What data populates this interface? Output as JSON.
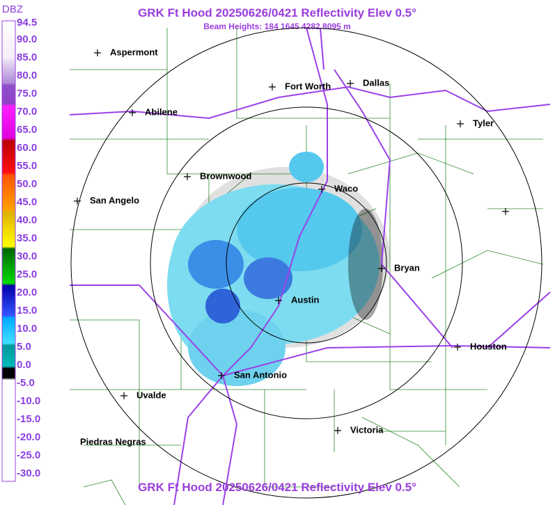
{
  "header": {
    "unit": "DBZ",
    "title": "GRK Ft Hood 20250626/0421 Reflectivity Elev 0.5°",
    "subtitle": "Beam Heights: 184 1645 4282 8095 m"
  },
  "scale": {
    "labels": [
      "94.5",
      "90.0",
      "85.0",
      "80.0",
      "75.0",
      "70.0",
      "65.0",
      "60.0",
      "55.0",
      "50.0",
      "45.0",
      "40.0",
      "35.0",
      "30.0",
      "25.0",
      "20.0",
      "15.0",
      "10.0",
      "5.0",
      "0.0",
      "-5.0",
      "-10.0",
      "-15.0",
      "-20.0",
      "-25.0",
      "-30.0"
    ]
  },
  "cities": [
    "Aspermont",
    "Abilene",
    "Fort Worth",
    "Dallas",
    "Tyler",
    "Brownwood",
    "Waco",
    "San Angelo",
    "Bryan",
    "Austin",
    "Houston",
    "San Antonio",
    "Uvalde",
    "Victoria",
    "Piedras Negras"
  ],
  "footer": {
    "title": "GRK Ft Hood 20250626/0421 Reflectivity Elev 0.5°"
  }
}
